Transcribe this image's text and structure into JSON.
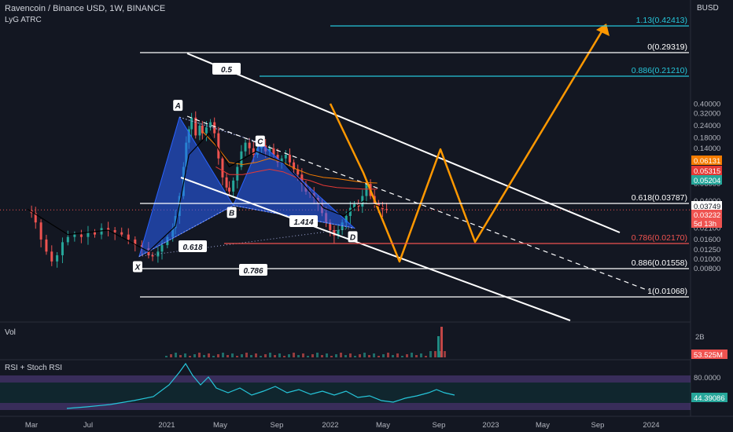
{
  "header": {
    "symbol_line": "Ravencoin / Binance USD, 1W, BINANCE",
    "indicator": "LyG ATRC"
  },
  "panes": {
    "volume_label": "Vol",
    "volume_scale_label": "2B",
    "volume_value": "53.525M",
    "rsi_label": "RSI + Stoch RSI",
    "rsi_tick": "80.0000",
    "rsi_value": "44.39086"
  },
  "price_axis": {
    "currency": "BUSD",
    "ticks": [
      "0.40000",
      "0.32000",
      "0.24000",
      "0.18000",
      "0.14000",
      "0.11000",
      "0.08000",
      "0.06000",
      "0.04000",
      "0.02500",
      "0.02100",
      "0.01600",
      "0.01250",
      "0.01000",
      "0.00800"
    ],
    "badges": [
      {
        "value": "0.06131",
        "color": "#f57c00"
      },
      {
        "value": "0.05315",
        "color": "#e53935"
      },
      {
        "value": "0.05204",
        "color": "#26a69a"
      },
      {
        "value": "0.03749",
        "color": "#131722"
      },
      {
        "value": "0.03232",
        "color": "#ef5350"
      },
      {
        "value": "5d 13h",
        "color": "#ef5350"
      }
    ]
  },
  "time_axis": {
    "labels": [
      "Mar",
      "Jul",
      "2021",
      "May",
      "Sep",
      "2022",
      "May",
      "Sep",
      "2023",
      "May",
      "Sep",
      "2024"
    ]
  },
  "fib_levels": [
    {
      "label": "1.13(0.42413)",
      "color": "#26c6da"
    },
    {
      "label": "0(0.29319)",
      "color": "#ffffff"
    },
    {
      "label": "0.886(0.21210)",
      "color": "#26c6da"
    },
    {
      "label": "0.618(0.03787)",
      "color": "#ffffff"
    },
    {
      "label": "0.786(0.02170)",
      "color": "#ef5350"
    },
    {
      "label": "0.886(0.01558)",
      "color": "#ffffff"
    },
    {
      "label": "1(0.01068)",
      "color": "#ffffff"
    }
  ],
  "pattern": {
    "points": [
      "X",
      "A",
      "B",
      "C",
      "D"
    ],
    "ratios": [
      "0.5",
      "0.618",
      "1.414",
      "0.786"
    ]
  },
  "chart_data": {
    "type": "line",
    "title": "Ravencoin / Binance USD, 1W, BINANCE",
    "y_scale": "log",
    "harmonic_points": [
      {
        "label": "X",
        "date": "2020-11",
        "price": 0.0107
      },
      {
        "label": "A",
        "date": "2021-02",
        "price": 0.2932
      },
      {
        "label": "B",
        "date": "2021-06",
        "price": 0.036
      },
      {
        "label": "C",
        "date": "2021-08",
        "price": 0.16
      },
      {
        "label": "D",
        "date": "2022-03",
        "price": 0.021
      }
    ],
    "projection_path": [
      {
        "date": "2022-04",
        "price": 0.0175
      },
      {
        "date": "2022-09",
        "price": 0.062
      },
      {
        "date": "2022-11",
        "price": 0.021
      },
      {
        "date": "2023-09",
        "price": 0.42
      }
    ]
  }
}
